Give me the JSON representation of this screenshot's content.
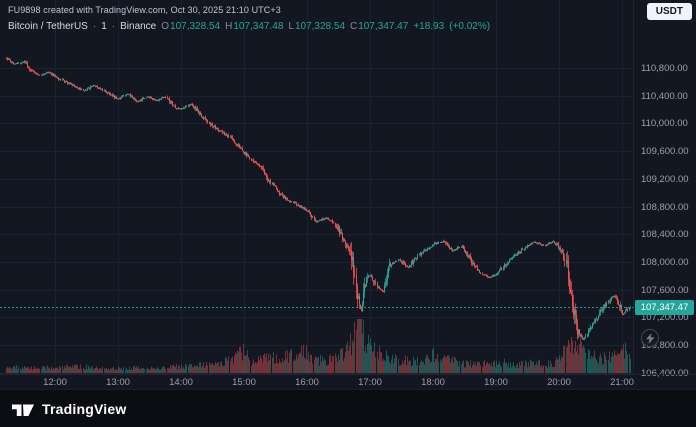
{
  "header": {
    "attribution": "FU9898 created with TradingView.com, Oct 30, 2025 21:10 UTC+3",
    "currency_button_label": "USDT"
  },
  "legend": {
    "symbol": "Bitcoin / TetherUS",
    "separator": "·",
    "interval": "1",
    "exchange": "Binance",
    "o_label": "O",
    "o": "107,328.54",
    "h_label": "H",
    "h": "107,347.48",
    "l_label": "L",
    "l": "107,328.54",
    "c_label": "C",
    "c": "107,347.47",
    "change": "+18.93",
    "change_pct": "(+0.02%)"
  },
  "price_scale": {
    "labels": [
      "110,800.00",
      "110,400.00",
      "110,000.00",
      "109,600.00",
      "109,200.00",
      "108,800.00",
      "108,400.00",
      "108,000.00",
      "107,600.00",
      "107,200.00",
      "106,800.00",
      "106,400.00"
    ],
    "last_price_badge": "107,347.47"
  },
  "time_scale": {
    "labels": [
      "12:00",
      "13:00",
      "14:00",
      "15:00",
      "16:00",
      "17:00",
      "18:00",
      "19:00",
      "20:00",
      "21:00"
    ]
  },
  "footer": {
    "brand": "TradingView"
  },
  "colors": {
    "background": "#131722",
    "up": "#26a69a",
    "down": "#ef5350",
    "grid": "#1c2230",
    "axis_text": "#9ba0ab",
    "badge_bg": "#26a69a",
    "volume_up": "rgba(38,166,154,0.45)",
    "volume_down": "rgba(239,83,80,0.45)"
  },
  "chart_data": {
    "type": "candlestick",
    "title": "Bitcoin / TetherUS · 1 · Binance",
    "interval_minutes": 1,
    "time_axis_hours": [
      12,
      13,
      14,
      15,
      16,
      17,
      18,
      19,
      20,
      21
    ],
    "time_range_hours": [
      11.22,
      21.12
    ],
    "price_axis_range": [
      106400,
      110800
    ],
    "price_axis_top_value": 110800,
    "price_axis_step": 400,
    "last_price": 107347.47,
    "open": 107328.54,
    "high": 107347.48,
    "low": 107328.54,
    "close": 107347.47,
    "change": 18.93,
    "change_pct": 0.02,
    "price_anchors": [
      [
        11.22,
        110940
      ],
      [
        11.35,
        110860
      ],
      [
        11.5,
        110890
      ],
      [
        11.62,
        110760
      ],
      [
        11.75,
        110700
      ],
      [
        11.9,
        110740
      ],
      [
        12.0,
        110680
      ],
      [
        12.15,
        110600
      ],
      [
        12.3,
        110540
      ],
      [
        12.45,
        110470
      ],
      [
        12.6,
        110550
      ],
      [
        12.75,
        110480
      ],
      [
        12.9,
        110400
      ],
      [
        13.0,
        110350
      ],
      [
        13.15,
        110430
      ],
      [
        13.3,
        110310
      ],
      [
        13.45,
        110390
      ],
      [
        13.6,
        110330
      ],
      [
        13.75,
        110390
      ],
      [
        13.9,
        110240
      ],
      [
        14.0,
        110210
      ],
      [
        14.15,
        110280
      ],
      [
        14.3,
        110130
      ],
      [
        14.45,
        109990
      ],
      [
        14.6,
        109900
      ],
      [
        14.75,
        109810
      ],
      [
        14.9,
        109680
      ],
      [
        15.0,
        109580
      ],
      [
        15.1,
        109480
      ],
      [
        15.25,
        109380
      ],
      [
        15.4,
        109180
      ],
      [
        15.55,
        108990
      ],
      [
        15.7,
        108890
      ],
      [
        15.85,
        108820
      ],
      [
        16.0,
        108740
      ],
      [
        16.15,
        108580
      ],
      [
        16.3,
        108640
      ],
      [
        16.45,
        108540
      ],
      [
        16.6,
        108280
      ],
      [
        16.7,
        108120
      ],
      [
        16.78,
        107520
      ],
      [
        16.85,
        107280
      ],
      [
        16.92,
        107700
      ],
      [
        17.0,
        107820
      ],
      [
        17.1,
        107650
      ],
      [
        17.2,
        107580
      ],
      [
        17.3,
        107940
      ],
      [
        17.45,
        108040
      ],
      [
        17.6,
        107920
      ],
      [
        17.75,
        108090
      ],
      [
        17.9,
        108190
      ],
      [
        18.0,
        108260
      ],
      [
        18.15,
        108300
      ],
      [
        18.3,
        108160
      ],
      [
        18.45,
        108230
      ],
      [
        18.6,
        108020
      ],
      [
        18.75,
        107840
      ],
      [
        18.9,
        107780
      ],
      [
        19.0,
        107820
      ],
      [
        19.15,
        107980
      ],
      [
        19.3,
        108090
      ],
      [
        19.45,
        108210
      ],
      [
        19.6,
        108290
      ],
      [
        19.75,
        108240
      ],
      [
        19.9,
        108300
      ],
      [
        20.0,
        108210
      ],
      [
        20.1,
        108040
      ],
      [
        20.18,
        107560
      ],
      [
        20.28,
        107020
      ],
      [
        20.38,
        106880
      ],
      [
        20.5,
        107060
      ],
      [
        20.62,
        107230
      ],
      [
        20.75,
        107400
      ],
      [
        20.85,
        107520
      ],
      [
        20.95,
        107380
      ],
      [
        21.02,
        107240
      ],
      [
        21.08,
        107320
      ],
      [
        21.12,
        107347
      ]
    ],
    "volume_anchors": [
      [
        11.22,
        0.12
      ],
      [
        11.6,
        0.09
      ],
      [
        12.0,
        0.1
      ],
      [
        12.4,
        0.12
      ],
      [
        12.8,
        0.08
      ],
      [
        13.2,
        0.09
      ],
      [
        13.6,
        0.08
      ],
      [
        14.0,
        0.12
      ],
      [
        14.4,
        0.16
      ],
      [
        14.8,
        0.22
      ],
      [
        15.0,
        0.42
      ],
      [
        15.1,
        0.22
      ],
      [
        15.4,
        0.28
      ],
      [
        15.7,
        0.3
      ],
      [
        15.95,
        0.38
      ],
      [
        16.1,
        0.26
      ],
      [
        16.3,
        0.22
      ],
      [
        16.55,
        0.34
      ],
      [
        16.7,
        0.55
      ],
      [
        16.8,
        1.0
      ],
      [
        16.9,
        0.72
      ],
      [
        17.0,
        0.5
      ],
      [
        17.15,
        0.34
      ],
      [
        17.35,
        0.26
      ],
      [
        17.6,
        0.22
      ],
      [
        17.85,
        0.2
      ],
      [
        18.0,
        0.34
      ],
      [
        18.2,
        0.24
      ],
      [
        18.45,
        0.18
      ],
      [
        18.7,
        0.15
      ],
      [
        19.0,
        0.2
      ],
      [
        19.3,
        0.16
      ],
      [
        19.6,
        0.18
      ],
      [
        19.85,
        0.16
      ],
      [
        20.0,
        0.22
      ],
      [
        20.15,
        0.5
      ],
      [
        20.25,
        0.62
      ],
      [
        20.35,
        0.5
      ],
      [
        20.5,
        0.32
      ],
      [
        20.7,
        0.26
      ],
      [
        20.85,
        0.3
      ],
      [
        21.0,
        0.52
      ],
      [
        21.08,
        0.34
      ],
      [
        21.12,
        0.3
      ]
    ]
  }
}
